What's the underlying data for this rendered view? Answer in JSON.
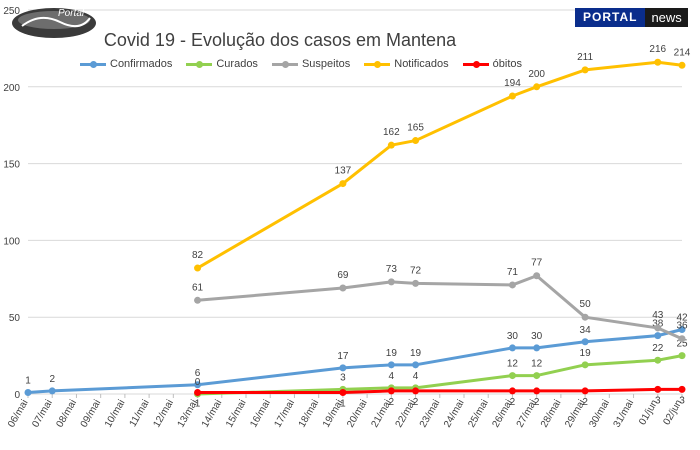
{
  "header": {
    "logo_text": "Portal",
    "badge_left": "PORTAL",
    "badge_right": "news"
  },
  "chart_data": {
    "type": "line",
    "title": "Covid 19 - Evolução dos casos em Mantena",
    "xlabel": "",
    "ylabel": "",
    "ylim": [
      0,
      250
    ],
    "yticks": [
      0,
      50,
      100,
      150,
      200,
      250
    ],
    "grid": true,
    "legend_position": "top",
    "categories": [
      "06/mai",
      "07/mai",
      "08/mai",
      "09/mai",
      "10/mai",
      "11/mai",
      "12/mai",
      "13/mai",
      "14/mai",
      "15/mai",
      "16/mai",
      "17/mai",
      "18/mai",
      "19/mai",
      "20/mai",
      "21/mai",
      "22/mai",
      "23/mai",
      "24/mai",
      "25/mai",
      "26/mai",
      "27/mai",
      "28/mai",
      "29/mai",
      "30/mai",
      "31/mai",
      "01/jun",
      "02/jun"
    ],
    "series": [
      {
        "name": "Confirmados",
        "color": "#5b9bd5",
        "points": [
          [
            "06/mai",
            1
          ],
          [
            "07/mai",
            2
          ],
          [
            "13/mai",
            6
          ],
          [
            "19/mai",
            17
          ],
          [
            "21/mai",
            19
          ],
          [
            "22/mai",
            19
          ],
          [
            "26/mai",
            30
          ],
          [
            "27/mai",
            30
          ],
          [
            "29/mai",
            34
          ],
          [
            "01/jun",
            38
          ],
          [
            "02/jun",
            42
          ]
        ]
      },
      {
        "name": "Curados",
        "color": "#92d050",
        "points": [
          [
            "13/mai",
            0
          ],
          [
            "19/mai",
            3
          ],
          [
            "21/mai",
            4
          ],
          [
            "22/mai",
            4
          ],
          [
            "26/mai",
            12
          ],
          [
            "27/mai",
            12
          ],
          [
            "29/mai",
            19
          ],
          [
            "01/jun",
            22
          ],
          [
            "02/jun",
            25
          ]
        ]
      },
      {
        "name": "Suspeitos",
        "color": "#a5a5a5",
        "points": [
          [
            "13/mai",
            61
          ],
          [
            "19/mai",
            69
          ],
          [
            "21/mai",
            73
          ],
          [
            "22/mai",
            72
          ],
          [
            "26/mai",
            71
          ],
          [
            "27/mai",
            77
          ],
          [
            "29/mai",
            50
          ],
          [
            "01/jun",
            43
          ],
          [
            "02/jun",
            36
          ]
        ]
      },
      {
        "name": "Notificados",
        "color": "#ffc000",
        "points": [
          [
            "13/mai",
            82
          ],
          [
            "19/mai",
            137
          ],
          [
            "21/mai",
            162
          ],
          [
            "22/mai",
            165
          ],
          [
            "26/mai",
            194
          ],
          [
            "27/mai",
            200
          ],
          [
            "29/mai",
            211
          ],
          [
            "01/jun",
            216
          ],
          [
            "02/jun",
            214
          ]
        ]
      },
      {
        "name": "óbitos",
        "color": "#ff0000",
        "points": [
          [
            "13/mai",
            1
          ],
          [
            "19/mai",
            1
          ],
          [
            "21/mai",
            2
          ],
          [
            "22/mai",
            2
          ],
          [
            "26/mai",
            2
          ],
          [
            "27/mai",
            2
          ],
          [
            "29/mai",
            2
          ],
          [
            "01/jun",
            3
          ],
          [
            "02/jun",
            3
          ]
        ]
      }
    ]
  }
}
